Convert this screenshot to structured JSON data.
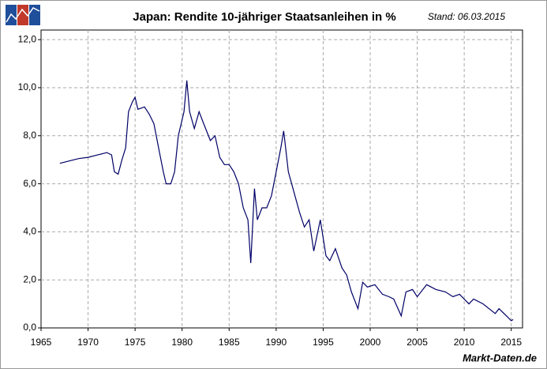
{
  "chart_data": {
    "type": "line",
    "title": "Japan: Rendite 10-jähriger Staatsanleihen in %",
    "subtitle": "Stand: 06.03.2015",
    "source": "Markt-Daten.de",
    "x": [
      1967.0,
      1968.0,
      1969.0,
      1970.0,
      1971.0,
      1972.0,
      1972.5,
      1972.8,
      1973.2,
      1973.6,
      1974.0,
      1974.3,
      1974.7,
      1975.0,
      1975.3,
      1976.0,
      1976.5,
      1977.0,
      1977.5,
      1978.0,
      1978.3,
      1978.8,
      1979.2,
      1979.6,
      1980.2,
      1980.5,
      1980.8,
      1981.3,
      1981.8,
      1982.3,
      1983.0,
      1983.5,
      1984.0,
      1984.5,
      1985.0,
      1985.5,
      1986.0,
      1986.5,
      1987.0,
      1987.3,
      1987.7,
      1988.0,
      1988.5,
      1989.0,
      1989.5,
      1990.0,
      1990.5,
      1990.8,
      1991.3,
      1992.0,
      1992.5,
      1993.0,
      1993.5,
      1994.0,
      1994.7,
      1995.3,
      1995.7,
      1996.3,
      1997.0,
      1997.5,
      1998.0,
      1998.7,
      1999.2,
      1999.7,
      2000.5,
      2001.3,
      2002.0,
      2002.5,
      2003.3,
      2003.8,
      2004.5,
      2005.0,
      2006.0,
      2007.0,
      2008.0,
      2008.8,
      2009.5,
      2010.5,
      2011.0,
      2012.0,
      2013.3,
      2013.7,
      2014.5,
      2015.0,
      2015.2
    ],
    "values": [
      6.85,
      6.95,
      7.05,
      7.1,
      7.2,
      7.3,
      7.2,
      6.5,
      6.4,
      7.0,
      7.5,
      9.0,
      9.4,
      9.6,
      9.1,
      9.2,
      8.9,
      8.5,
      7.5,
      6.5,
      6.0,
      6.0,
      6.5,
      8.0,
      9.0,
      10.3,
      9.0,
      8.3,
      9.0,
      8.5,
      7.8,
      8.0,
      7.1,
      6.8,
      6.8,
      6.5,
      6.0,
      5.0,
      4.5,
      2.7,
      5.8,
      4.5,
      5.0,
      5.0,
      5.5,
      6.5,
      7.5,
      8.2,
      6.5,
      5.5,
      4.8,
      4.2,
      4.5,
      3.2,
      4.5,
      3.0,
      2.8,
      3.3,
      2.5,
      2.2,
      1.5,
      0.8,
      1.9,
      1.7,
      1.8,
      1.4,
      1.3,
      1.2,
      0.5,
      1.5,
      1.6,
      1.3,
      1.8,
      1.6,
      1.5,
      1.3,
      1.4,
      1.0,
      1.2,
      1.0,
      0.6,
      0.8,
      0.5,
      0.3,
      0.35
    ],
    "color": "#000066",
    "xlim": [
      1965,
      2016.2
    ],
    "ylim": [
      0,
      12.4
    ],
    "xticks": [
      1965,
      1970,
      1975,
      1980,
      1985,
      1990,
      1995,
      2000,
      2005,
      2010,
      2015
    ],
    "yticks": [
      {
        "value": 0,
        "label": "0,0"
      },
      {
        "value": 2,
        "label": "2,0"
      },
      {
        "value": 4,
        "label": "4,0"
      },
      {
        "value": 6,
        "label": "6,0"
      },
      {
        "value": 8,
        "label": "8,0"
      },
      {
        "value": 10,
        "label": "10,0"
      },
      {
        "value": 12,
        "label": "12,0"
      }
    ],
    "grid": true
  }
}
